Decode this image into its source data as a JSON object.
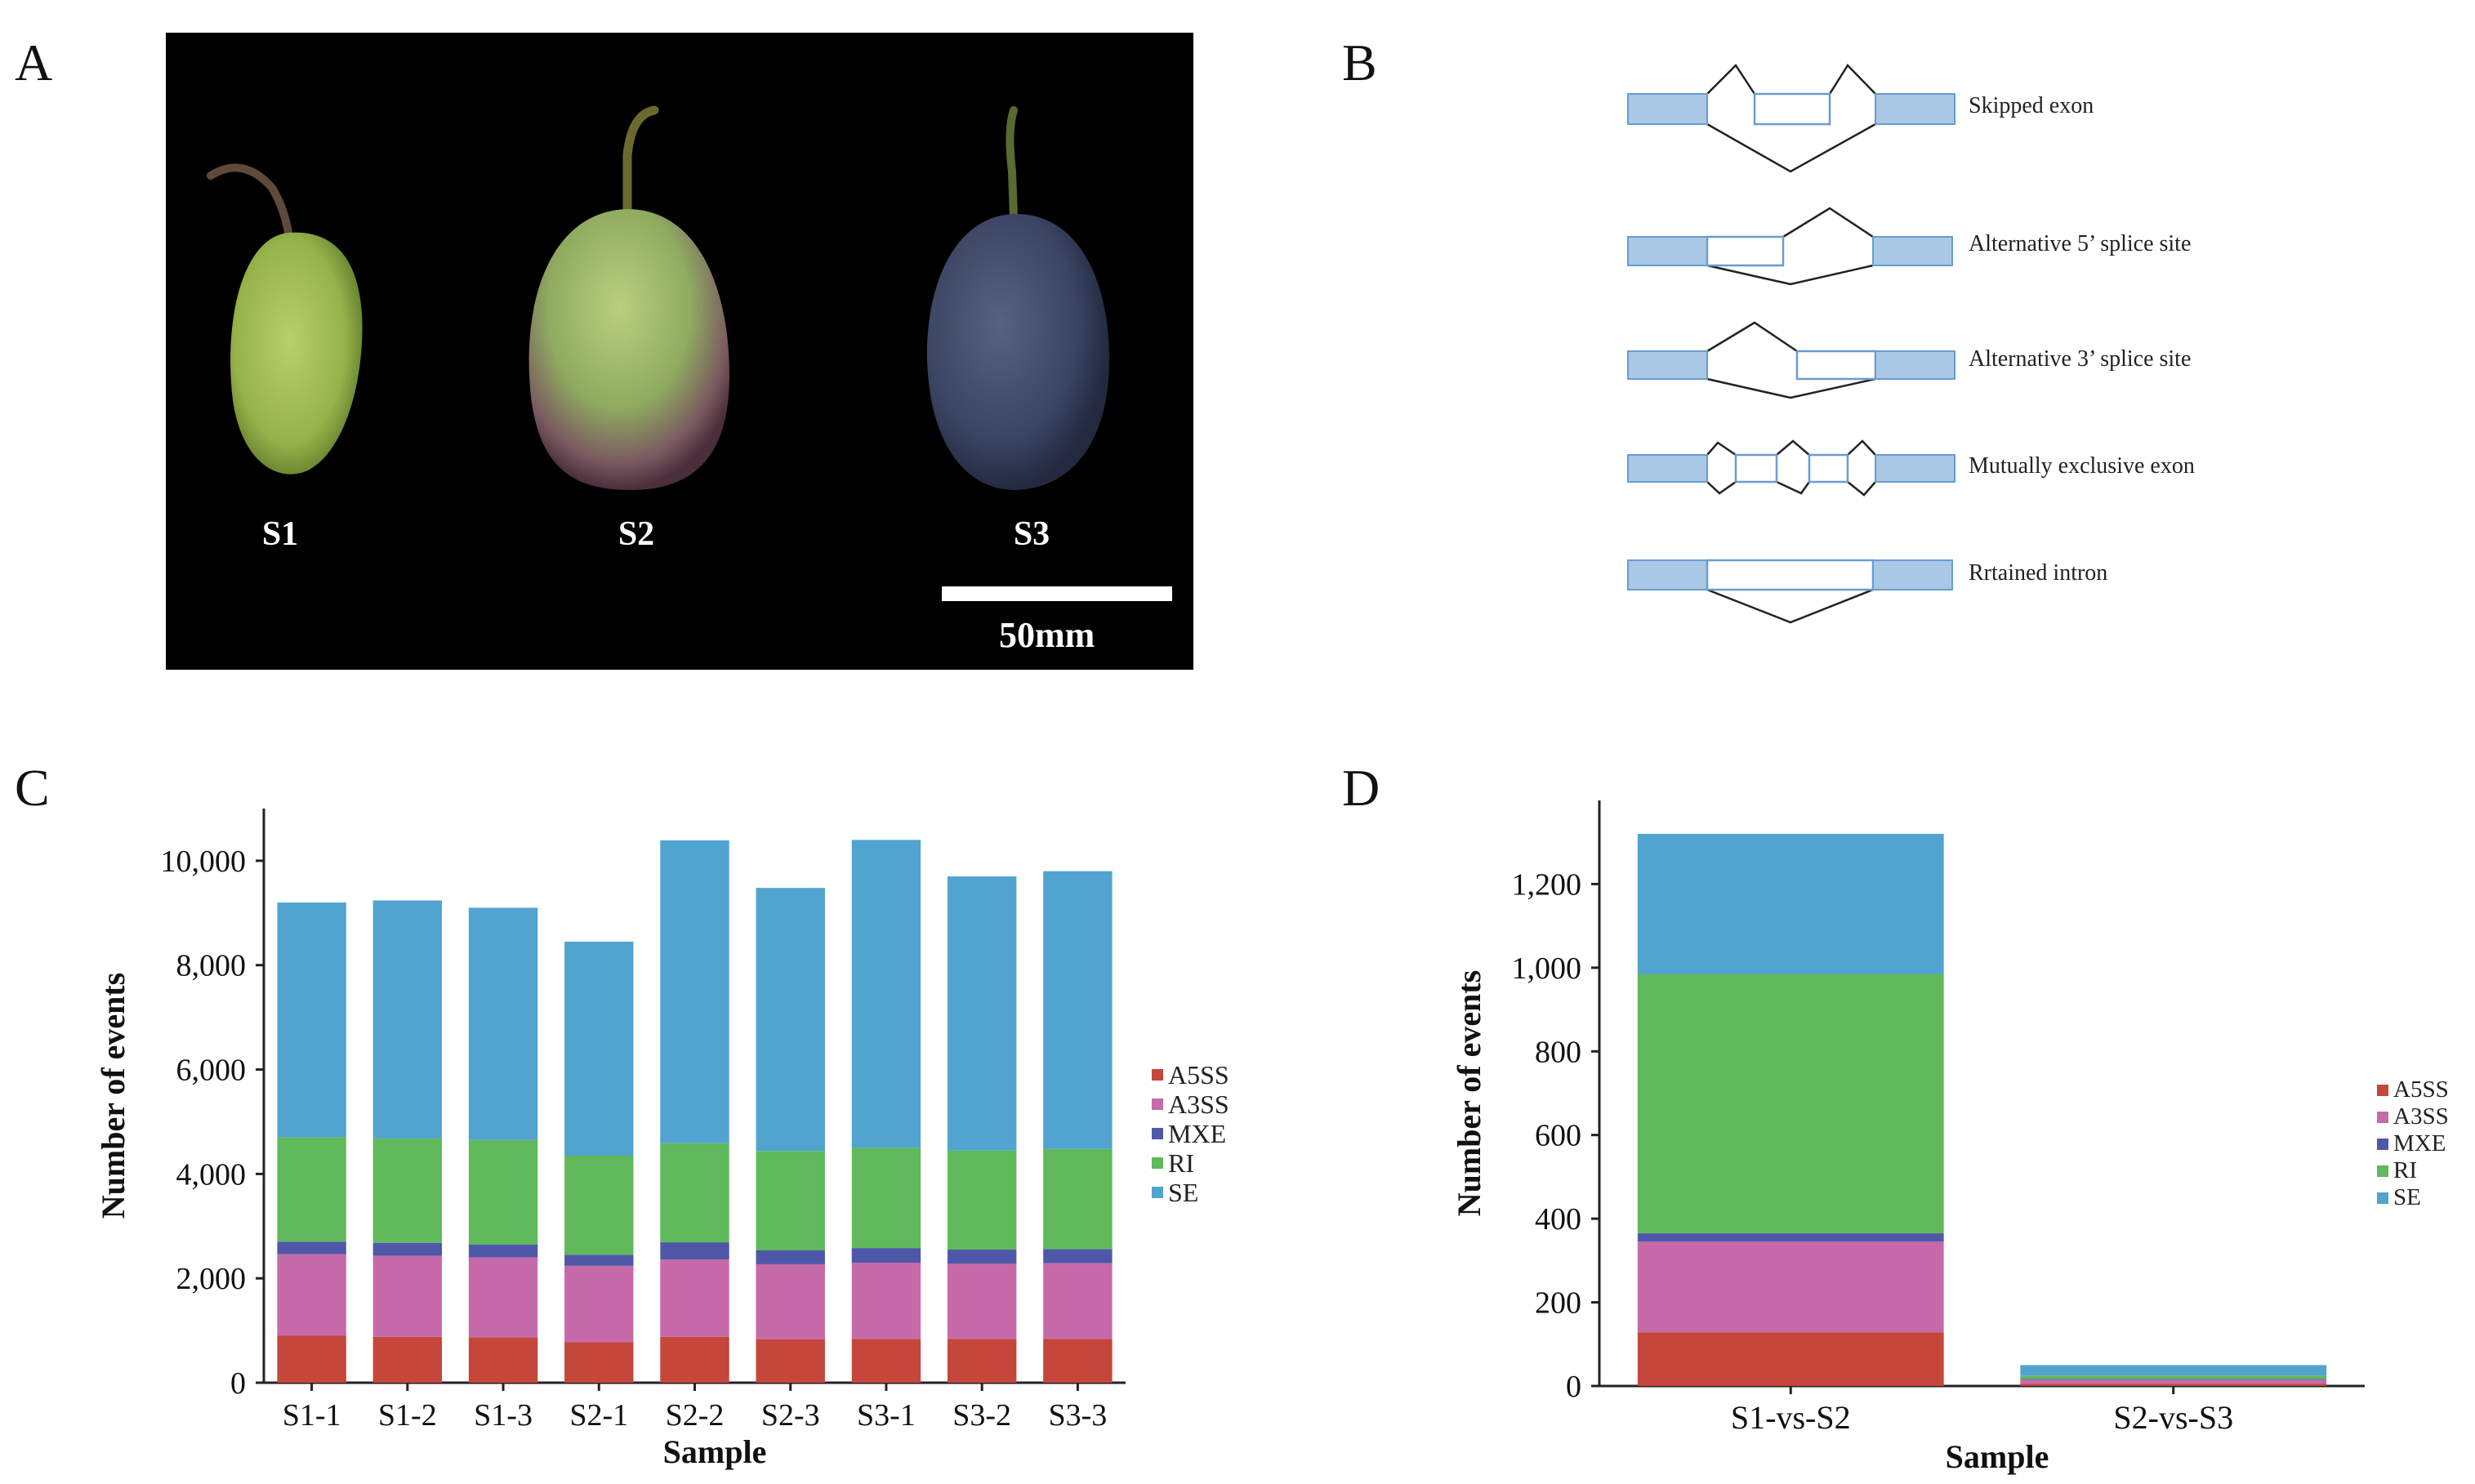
{
  "panels": {
    "a": {
      "letter": "A",
      "stages": [
        "S1",
        "S2",
        "S3"
      ],
      "scale_label": "50mm"
    },
    "b": {
      "letter": "B",
      "events": [
        "Skipped exon",
        "Alternative 5’ splice site",
        "Alternative 3’ splice site",
        "Mutually exclusive exon",
        "Rrtained intron"
      ]
    },
    "c": {
      "letter": "C"
    },
    "d": {
      "letter": "D"
    }
  },
  "colors": {
    "A5SS": "#c5463b",
    "A3SS": "#c76aaa",
    "MXE": "#4f58a8",
    "RI": "#60b95b",
    "SE": "#51a4cf",
    "exon_fill": "#a9c8e6",
    "exon_stroke": "#6a9ccd"
  },
  "chart_data": [
    {
      "type": "bar",
      "stacked": true,
      "categories": [
        "S1-1",
        "S1-2",
        "S1-3",
        "S2-1",
        "S2-2",
        "S2-3",
        "S3-1",
        "S3-2",
        "S3-3"
      ],
      "series": [
        {
          "name": "A5SS",
          "values": [
            900,
            880,
            870,
            780,
            880,
            830,
            840,
            840,
            840
          ]
        },
        {
          "name": "A3SS",
          "values": [
            1560,
            1550,
            1530,
            1460,
            1480,
            1440,
            1460,
            1440,
            1450
          ]
        },
        {
          "name": "MXE",
          "values": [
            240,
            250,
            250,
            210,
            330,
            270,
            280,
            270,
            270
          ]
        },
        {
          "name": "RI",
          "values": [
            2000,
            2000,
            2000,
            1900,
            1900,
            1900,
            1920,
            1900,
            1920
          ]
        },
        {
          "name": "SE",
          "values": [
            4500,
            4560,
            4450,
            4100,
            5800,
            5040,
            5900,
            5250,
            5320
          ]
        }
      ],
      "xlabel": "Sample",
      "ylabel": "Number of events",
      "ylim": [
        0,
        11000
      ],
      "yticks": [
        0,
        2000,
        4000,
        6000,
        8000,
        10000
      ],
      "ytick_labels": [
        "0",
        "2,000",
        "4,000",
        "6,000",
        "8,000",
        "10,000"
      ],
      "legend": [
        "A5SS",
        "A3SS",
        "MXE",
        "RI",
        "SE"
      ],
      "legend_position": "right"
    },
    {
      "type": "bar",
      "stacked": true,
      "categories": [
        "S1-vs-S2",
        "S2-vs-S3"
      ],
      "series": [
        {
          "name": "A5SS",
          "values": [
            128,
            5
          ]
        },
        {
          "name": "A3SS",
          "values": [
            217,
            10
          ]
        },
        {
          "name": "MXE",
          "values": [
            20,
            2
          ]
        },
        {
          "name": "RI",
          "values": [
            620,
            8
          ]
        },
        {
          "name": "SE",
          "values": [
            335,
            25
          ]
        }
      ],
      "xlabel": "Sample",
      "ylabel": "Number of events",
      "ylim": [
        0,
        1400
      ],
      "yticks": [
        0,
        200,
        400,
        600,
        800,
        1000,
        1200
      ],
      "ytick_labels": [
        "0",
        "200",
        "400",
        "600",
        "800",
        "1,000",
        "1,200"
      ],
      "legend": [
        "A5SS",
        "A3SS",
        "MXE",
        "RI",
        "SE"
      ],
      "legend_position": "right"
    }
  ]
}
